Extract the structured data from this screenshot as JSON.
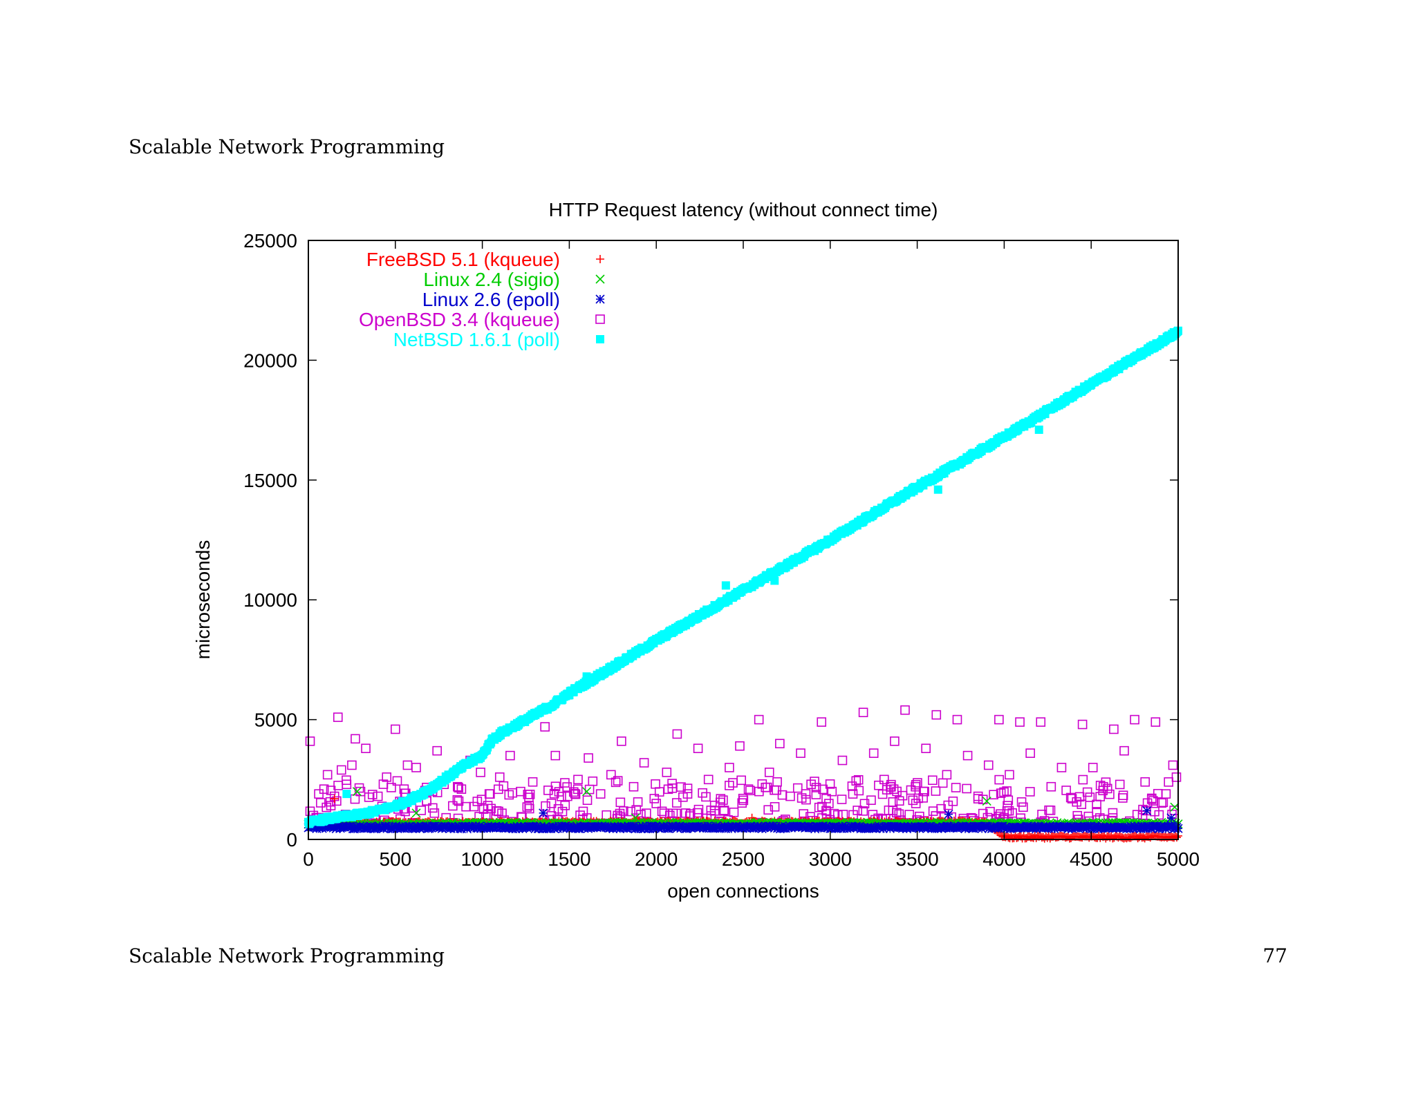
{
  "page": {
    "header": "Scalable Network Programming",
    "footer": "Scalable Network Programming",
    "page_number": "77"
  },
  "chart_data": {
    "type": "scatter",
    "title": "HTTP Request latency (without connect time)",
    "xlabel": "open connections",
    "ylabel": "microseconds",
    "xlim": [
      0,
      5000
    ],
    "ylim": [
      0,
      25000
    ],
    "xticks": [
      0,
      500,
      1000,
      1500,
      2000,
      2500,
      3000,
      3500,
      4000,
      4500,
      5000
    ],
    "yticks": [
      0,
      5000,
      10000,
      15000,
      20000,
      25000
    ],
    "grid": false,
    "legend_position": "top-left",
    "series": [
      {
        "name": "FreeBSD 5.1 (kqueue)",
        "color": "#ff0000",
        "marker": "plus",
        "trend": [
          [
            0,
            650
          ],
          [
            500,
            700
          ],
          [
            1000,
            700
          ],
          [
            2000,
            720
          ],
          [
            3000,
            720
          ],
          [
            3900,
            720
          ],
          [
            4000,
            100
          ],
          [
            5000,
            100
          ]
        ],
        "outliers": [
          [
            150,
            1700
          ],
          [
            2550,
            900
          ]
        ]
      },
      {
        "name": "Linux 2.4 (sigio)",
        "color": "#00cc00",
        "marker": "x",
        "trend": [
          [
            0,
            600
          ],
          [
            1000,
            650
          ],
          [
            2000,
            650
          ],
          [
            3000,
            650
          ],
          [
            4000,
            650
          ],
          [
            5000,
            650
          ]
        ],
        "outliers": [
          [
            280,
            2000
          ],
          [
            620,
            1100
          ],
          [
            1600,
            2000
          ],
          [
            1880,
            900
          ],
          [
            3900,
            1600
          ],
          [
            4980,
            1350
          ]
        ]
      },
      {
        "name": "Linux 2.6 (epoll)",
        "color": "#0000cc",
        "marker": "asterisk",
        "trend": [
          [
            0,
            500
          ],
          [
            1000,
            500
          ],
          [
            2000,
            500
          ],
          [
            3000,
            500
          ],
          [
            4000,
            500
          ],
          [
            5000,
            500
          ]
        ],
        "outliers": [
          [
            1350,
            1100
          ],
          [
            3680,
            1050
          ],
          [
            4820,
            1200
          ],
          [
            4960,
            900
          ]
        ]
      },
      {
        "name": "OpenBSD 3.4 (kqueue)",
        "color": "#cc00cc",
        "marker": "open-square",
        "trend": [],
        "points": [
          [
            10,
            4100
          ],
          [
            60,
            1900
          ],
          [
            90,
            2100
          ],
          [
            110,
            2700
          ],
          [
            150,
            1800
          ],
          [
            170,
            5100
          ],
          [
            190,
            2900
          ],
          [
            220,
            2300
          ],
          [
            250,
            3100
          ],
          [
            270,
            4200
          ],
          [
            300,
            2000
          ],
          [
            330,
            3800
          ],
          [
            400,
            1800
          ],
          [
            450,
            2600
          ],
          [
            500,
            4600
          ],
          [
            550,
            2100
          ],
          [
            570,
            3100
          ],
          [
            620,
            3000
          ],
          [
            680,
            1600
          ],
          [
            740,
            3700
          ],
          [
            780,
            2300
          ],
          [
            830,
            1400
          ],
          [
            880,
            2100
          ],
          [
            930,
            3300
          ],
          [
            990,
            2800
          ],
          [
            1040,
            1900
          ],
          [
            1100,
            2600
          ],
          [
            1160,
            3500
          ],
          [
            1220,
            2000
          ],
          [
            1290,
            2400
          ],
          [
            1360,
            4700
          ],
          [
            1420,
            3500
          ],
          [
            1490,
            1800
          ],
          [
            1550,
            2500
          ],
          [
            1610,
            3400
          ],
          [
            1680,
            1900
          ],
          [
            1740,
            2700
          ],
          [
            1800,
            4100
          ],
          [
            1870,
            2200
          ],
          [
            1930,
            3200
          ],
          [
            2000,
            1500
          ],
          [
            2060,
            2800
          ],
          [
            2120,
            4400
          ],
          [
            2180,
            1900
          ],
          [
            2240,
            3800
          ],
          [
            2300,
            2500
          ],
          [
            2370,
            1700
          ],
          [
            2420,
            3000
          ],
          [
            2480,
            3900
          ],
          [
            2530,
            2100
          ],
          [
            2590,
            5000
          ],
          [
            2650,
            2800
          ],
          [
            2710,
            4000
          ],
          [
            2770,
            1800
          ],
          [
            2830,
            3600
          ],
          [
            2890,
            2300
          ],
          [
            2950,
            4900
          ],
          [
            3010,
            2000
          ],
          [
            3070,
            3300
          ],
          [
            3130,
            1900
          ],
          [
            3190,
            5300
          ],
          [
            3250,
            3600
          ],
          [
            3310,
            2500
          ],
          [
            3370,
            4100
          ],
          [
            3430,
            5400
          ],
          [
            3490,
            2200
          ],
          [
            3550,
            3800
          ],
          [
            3610,
            5200
          ],
          [
            3670,
            2700
          ],
          [
            3730,
            5000
          ],
          [
            3790,
            3500
          ],
          [
            3850,
            1800
          ],
          [
            3910,
            3100
          ],
          [
            3970,
            5000
          ],
          [
            4030,
            2700
          ],
          [
            4090,
            4900
          ],
          [
            4150,
            3600
          ],
          [
            4210,
            4900
          ],
          [
            4270,
            2200
          ],
          [
            4330,
            3000
          ],
          [
            4390,
            1700
          ],
          [
            4450,
            4800
          ],
          [
            4510,
            3000
          ],
          [
            4570,
            2200
          ],
          [
            4630,
            4600
          ],
          [
            4690,
            3700
          ],
          [
            4750,
            5000
          ],
          [
            4810,
            2400
          ],
          [
            4870,
            4900
          ],
          [
            4930,
            1900
          ],
          [
            4970,
            3100
          ],
          [
            4990,
            2600
          ]
        ],
        "band": {
          "x_min": 0,
          "x_max": 5000,
          "y_min": 600,
          "y_max": 2500
        }
      },
      {
        "name": "NetBSD 1.6.1 (poll)",
        "color": "#00ffff",
        "marker": "filled-square",
        "trend": [
          [
            0,
            700
          ],
          [
            100,
            850
          ],
          [
            200,
            950
          ],
          [
            300,
            1050
          ],
          [
            400,
            1200
          ],
          [
            500,
            1400
          ],
          [
            600,
            1700
          ],
          [
            700,
            2100
          ],
          [
            800,
            2600
          ],
          [
            900,
            3100
          ],
          [
            1000,
            3500
          ],
          [
            1050,
            4100
          ],
          [
            1100,
            4400
          ],
          [
            1200,
            4800
          ],
          [
            1300,
            5200
          ],
          [
            1400,
            5600
          ],
          [
            1500,
            6100
          ],
          [
            2000,
            8300
          ],
          [
            2500,
            10400
          ],
          [
            3000,
            12500
          ],
          [
            3500,
            14700
          ],
          [
            4000,
            16800
          ],
          [
            4500,
            19000
          ],
          [
            5000,
            21200
          ]
        ],
        "outliers": [
          [
            220,
            1900
          ],
          [
            1600,
            6800
          ],
          [
            2400,
            10600
          ],
          [
            2680,
            10800
          ],
          [
            3620,
            14600
          ],
          [
            4200,
            17100
          ]
        ]
      }
    ]
  }
}
